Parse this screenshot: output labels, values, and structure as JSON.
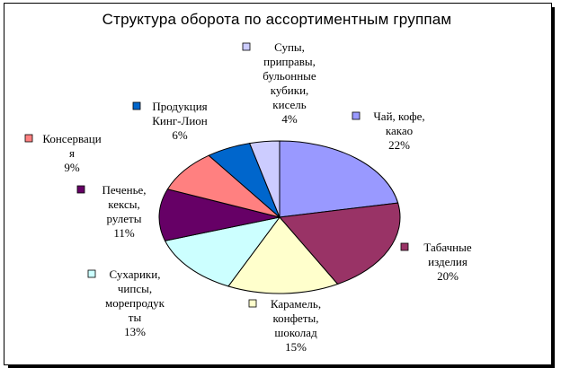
{
  "chart_data": {
    "type": "pie",
    "title": "Структура оборота по ассортиментным группам",
    "slices": [
      {
        "lines": [
          "Чай, кофе,",
          "какао"
        ],
        "pct": "22%",
        "value": 22,
        "color": "#9999FF"
      },
      {
        "lines": [
          "Табачные",
          "изделия"
        ],
        "pct": "20%",
        "value": 20,
        "color": "#993366"
      },
      {
        "lines": [
          "Карамель,",
          "конфеты,",
          "шоколад"
        ],
        "pct": "15%",
        "value": 15,
        "color": "#FFFFCC"
      },
      {
        "lines": [
          "Сухарики,",
          "чипсы,",
          "морепродук",
          "ты"
        ],
        "pct": "13%",
        "value": 13,
        "color": "#CCFFFF"
      },
      {
        "lines": [
          "Печенье,",
          "кексы,",
          "рулеты"
        ],
        "pct": "11%",
        "value": 11,
        "color": "#660066"
      },
      {
        "lines": [
          "Консерваци",
          "я"
        ],
        "pct": "9%",
        "value": 9,
        "color": "#FF8080"
      },
      {
        "lines": [
          "Продукция",
          "Кинг-Лион"
        ],
        "pct": "6%",
        "value": 6,
        "color": "#0066CC"
      },
      {
        "lines": [
          "Супы,",
          "приправы,",
          "бульонные",
          "кубики,",
          "кисель"
        ],
        "pct": "4%",
        "value": 4,
        "color": "#CCCCFF"
      }
    ]
  }
}
